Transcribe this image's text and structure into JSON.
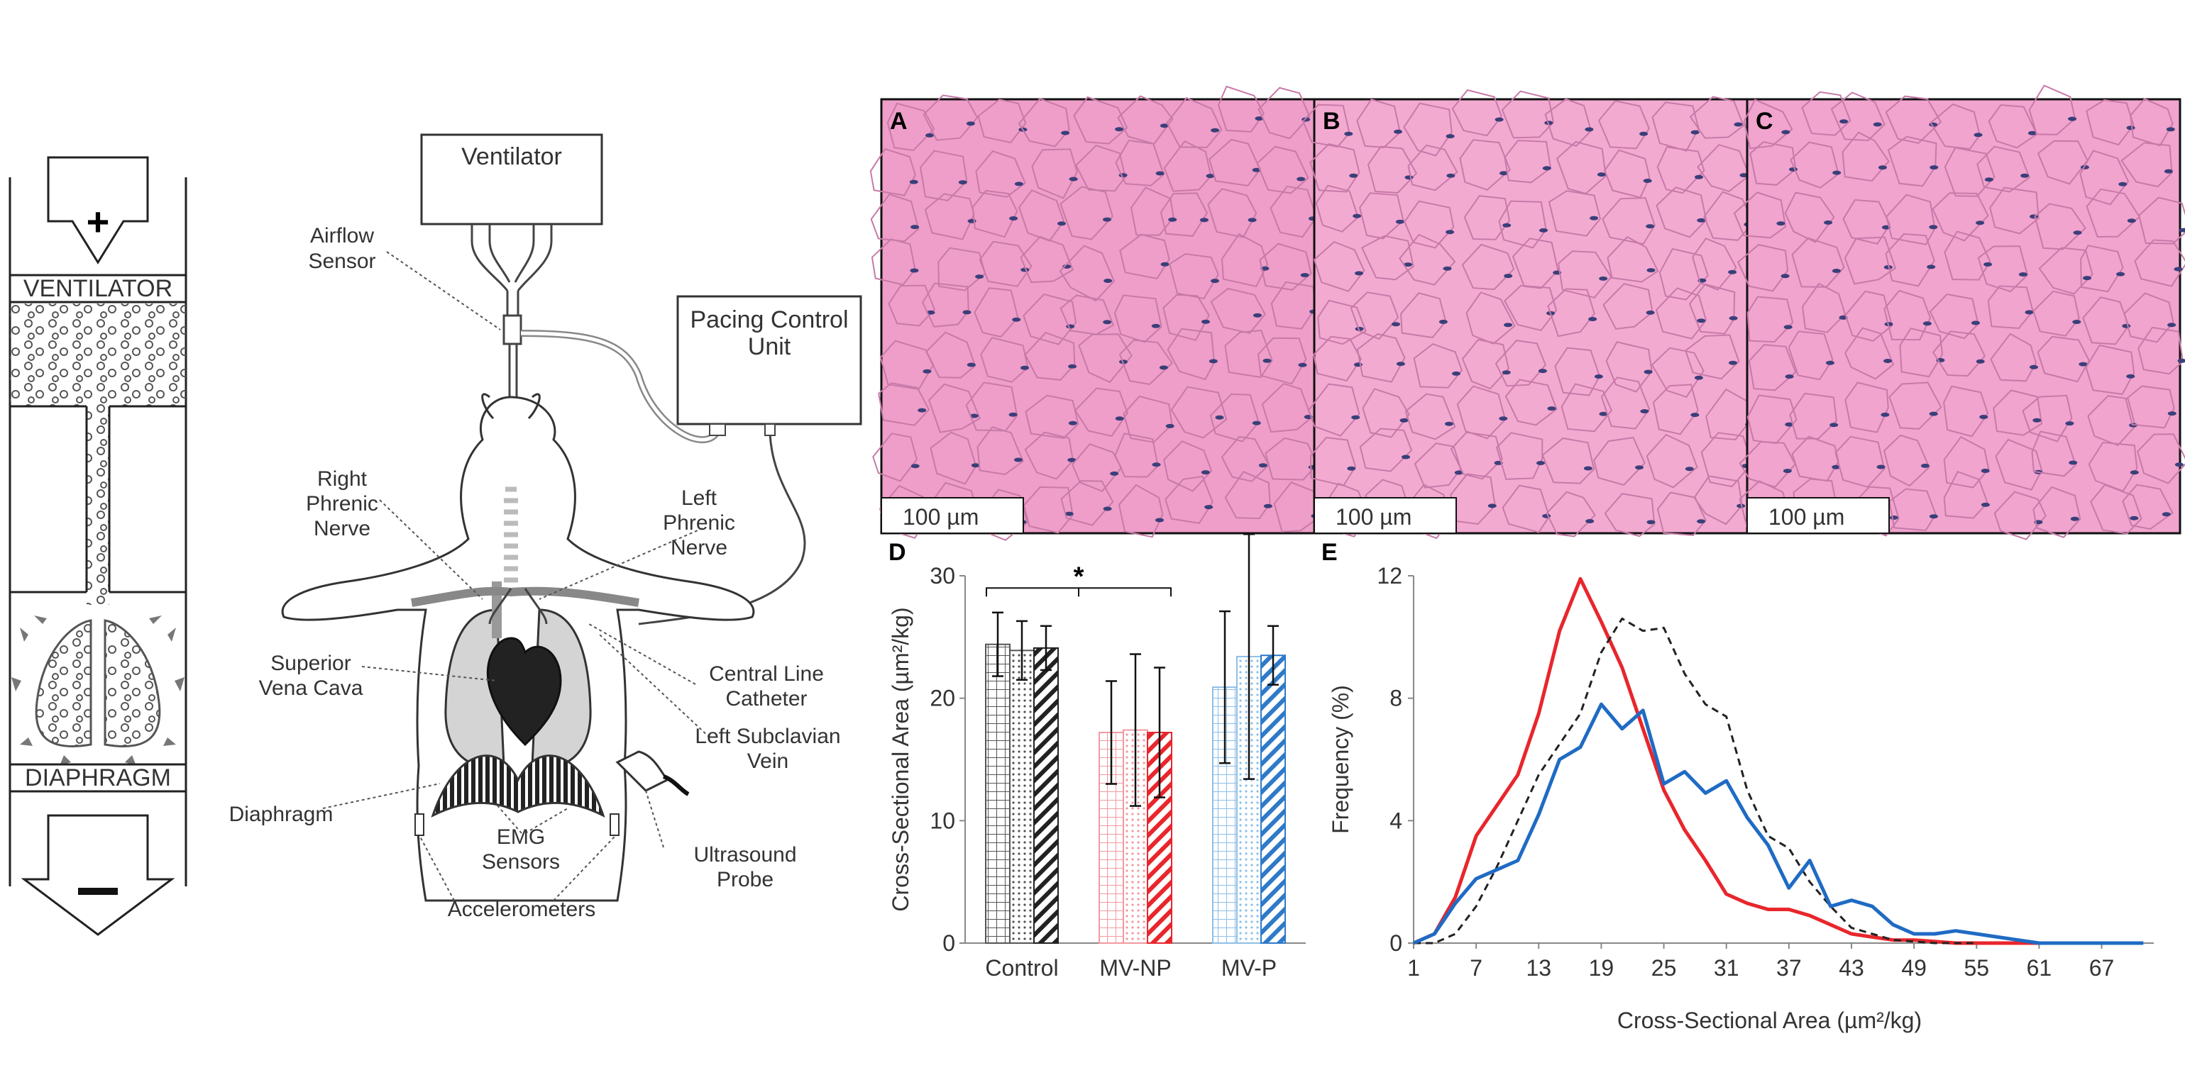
{
  "schematic": {
    "ventilator_label": "VENTILATOR",
    "diaphragm_label": "DIAPHRAGM",
    "plus_symbol": "+",
    "minus_symbol": "−"
  },
  "setup": {
    "ventilator": "Ventilator",
    "airflow_sensor": [
      "Airflow",
      "Sensor"
    ],
    "pacing_control_unit": [
      "Pacing Control",
      "Unit"
    ],
    "right_phrenic_nerve": [
      "Right",
      "Phrenic",
      "Nerve"
    ],
    "left_phrenic_nerve": [
      "Left",
      "Phrenic",
      "Nerve"
    ],
    "superior_vena_cava": [
      "Superior",
      "Vena Cava"
    ],
    "central_line_catheter": [
      "Central Line",
      "Catheter"
    ],
    "left_subclavian_vein": [
      "Left Subclavian",
      "Vein"
    ],
    "diaphragm": "Diaphragm",
    "emg_sensors": [
      "EMG",
      "Sensors"
    ],
    "ultrasound_probe": [
      "Ultrasound",
      "Probe"
    ],
    "accelerometers": "Accelerometers"
  },
  "histology": {
    "panels": [
      {
        "letter": "A",
        "scale": "100 µm"
      },
      {
        "letter": "B",
        "scale": "100 µm"
      },
      {
        "letter": "C",
        "scale": "100 µm"
      }
    ],
    "colors": {
      "stain": "#ee9ec8",
      "nuclei": "#3a3f7a"
    }
  },
  "chart_data": [
    {
      "panel": "D",
      "type": "bar",
      "categories": [
        "Control",
        "MV-NP",
        "MV-P"
      ],
      "ylabel": "Cross-Sectional Area (µm²/kg)",
      "ylim": [
        0,
        30
      ],
      "yticks": [
        0,
        10,
        20,
        30
      ],
      "significance": "*",
      "groups": [
        {
          "category": "Control",
          "color": "#555555",
          "values": [
            24.4,
            23.9,
            24.1
          ],
          "errors": [
            2.6,
            2.4,
            1.8
          ]
        },
        {
          "category": "MV-NP",
          "color": "#e8262c",
          "values": [
            17.2,
            17.4,
            17.2
          ],
          "errors": [
            4.2,
            6.2,
            5.3
          ]
        },
        {
          "category": "MV-P",
          "color": "#2e7ac8",
          "values": [
            20.9,
            23.4,
            23.5
          ],
          "errors": [
            6.2,
            10.0,
            2.4
          ]
        }
      ]
    },
    {
      "panel": "E",
      "type": "line",
      "xlabel": "Cross-Sectional Area (µm²/kg)",
      "ylabel": "Frequency (%)",
      "xlim": [
        1,
        72
      ],
      "ylim": [
        0,
        12
      ],
      "xticks": [
        1,
        7,
        13,
        19,
        25,
        31,
        37,
        43,
        49,
        55,
        61,
        67
      ],
      "yticks": [
        0,
        4,
        8,
        12
      ],
      "series": [
        {
          "color": "#e8262c",
          "dash": "solid",
          "x": [
            1,
            3,
            5,
            7,
            9,
            11,
            13,
            15,
            17,
            19,
            21,
            23,
            25,
            27,
            29,
            31,
            33,
            35,
            37,
            39,
            41,
            43,
            45,
            47,
            49,
            51,
            53,
            55,
            57,
            59,
            61
          ],
          "y": [
            0,
            0.3,
            1.5,
            3.5,
            4.5,
            5.5,
            7.5,
            10.2,
            11.9,
            10.5,
            9.0,
            7.0,
            5.0,
            3.7,
            2.7,
            1.6,
            1.3,
            1.1,
            1.1,
            0.9,
            0.6,
            0.3,
            0.2,
            0.1,
            0.1,
            0.05,
            0,
            0,
            0,
            0,
            0
          ]
        },
        {
          "color": "#222222",
          "dash": "dashed",
          "x": [
            1,
            3,
            5,
            7,
            9,
            11,
            13,
            15,
            17,
            19,
            21,
            23,
            25,
            27,
            29,
            31,
            33,
            35,
            37,
            39,
            41,
            43,
            45,
            47,
            49,
            51,
            53,
            55
          ],
          "y": [
            0,
            0,
            0.3,
            1.2,
            2.5,
            4.0,
            5.5,
            6.5,
            7.5,
            9.5,
            10.6,
            10.2,
            10.3,
            8.8,
            7.8,
            7.4,
            5.0,
            3.5,
            3.1,
            2.0,
            1.2,
            0.5,
            0.3,
            0.1,
            0.05,
            0,
            0,
            0
          ]
        },
        {
          "color": "#1f6bc4",
          "dash": "solid",
          "x": [
            1,
            3,
            5,
            7,
            9,
            11,
            13,
            15,
            17,
            19,
            21,
            23,
            25,
            27,
            29,
            31,
            33,
            35,
            37,
            39,
            41,
            43,
            45,
            47,
            49,
            51,
            53,
            55,
            57,
            59,
            61,
            63,
            65,
            67,
            69,
            71
          ],
          "y": [
            0,
            0.3,
            1.3,
            2.1,
            2.4,
            2.7,
            4.2,
            6.0,
            6.4,
            7.8,
            7.0,
            7.6,
            5.2,
            5.6,
            4.9,
            5.3,
            4.1,
            3.2,
            1.8,
            2.7,
            1.2,
            1.4,
            1.2,
            0.6,
            0.3,
            0.3,
            0.4,
            0.3,
            0.2,
            0.1,
            0,
            0,
            0,
            0,
            0,
            0
          ]
        }
      ]
    }
  ]
}
